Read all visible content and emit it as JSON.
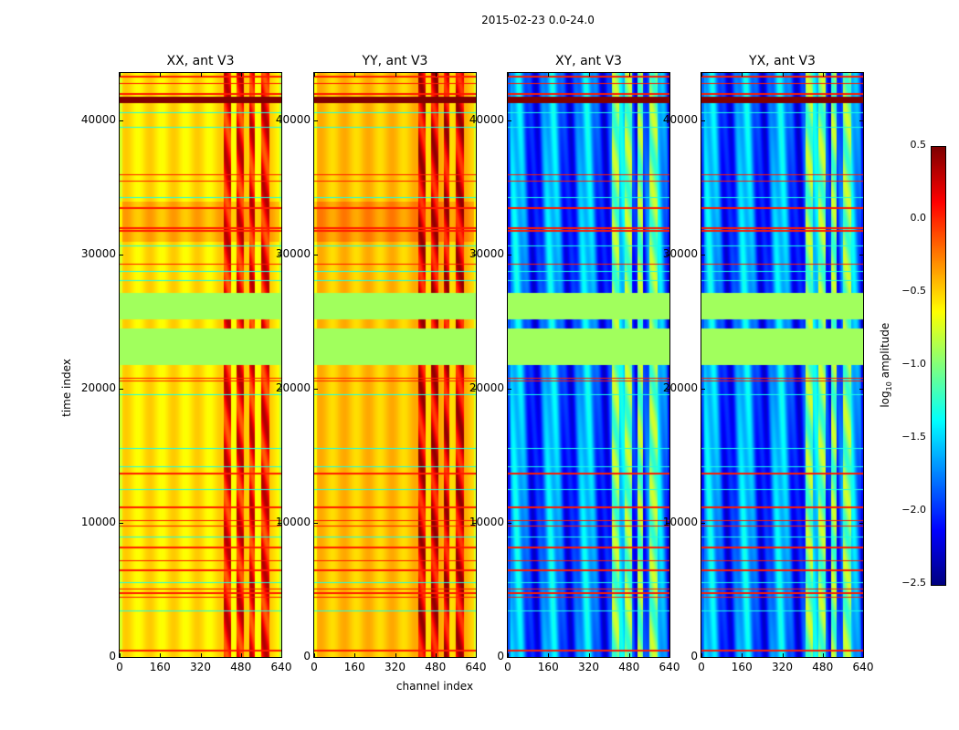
{
  "chart_data": {
    "type": "heatmap",
    "title": "2015-02-23 0.0-24.0",
    "xlabel": "channel index",
    "ylabel": "time index",
    "xlim": [
      0,
      640
    ],
    "ylim": [
      0,
      43540
    ],
    "xticks": [
      "0",
      "160",
      "320",
      "480",
      "640"
    ],
    "yticks": [
      "0",
      "10000",
      "20000",
      "30000",
      "40000"
    ],
    "colorbar": {
      "label_prefix": "log",
      "label_sub": "10",
      "label_suffix": " amplitude",
      "colormap": "jet",
      "range": [
        -2.5,
        0.5
      ],
      "ticks": [
        "0.5",
        "0.0",
        "−0.5",
        "−1.0",
        "−1.5",
        "−2.0",
        "−2.5"
      ]
    },
    "panels": [
      {
        "title": "XX, ant V3",
        "base_value": -0.55,
        "stripe_value": 0.1
      },
      {
        "title": "YY, ant V3",
        "base_value": -0.45,
        "stripe_value": 0.2
      },
      {
        "title": "XY, ant V3",
        "base_value": -1.8,
        "stripe_value": -1.0
      },
      {
        "title": "YX, ant V3",
        "base_value": -1.8,
        "stripe_value": -1.0
      }
    ],
    "bright_channel_ranges": [
      [
        410,
        440
      ],
      [
        460,
        490
      ],
      [
        510,
        535
      ],
      [
        560,
        590
      ]
    ],
    "flagged_time_ranges": [
      [
        21800,
        24500
      ],
      [
        25200,
        27200
      ]
    ],
    "flagged_value": -0.9,
    "saturated_time_ranges": [
      [
        41300,
        41800
      ]
    ],
    "red_line_times": [
      500,
      4500,
      4800,
      5100,
      6500,
      7200,
      8200,
      9800,
      10200,
      11200,
      13700,
      20600,
      20800,
      29300,
      31800,
      32000,
      33500,
      35500,
      36000,
      42000,
      42800,
      43300
    ],
    "cyan_line_times": [
      3500,
      5600,
      9000,
      12500,
      14200,
      15600,
      19600,
      28100,
      28800,
      30700,
      34300,
      39500,
      40600
    ]
  }
}
